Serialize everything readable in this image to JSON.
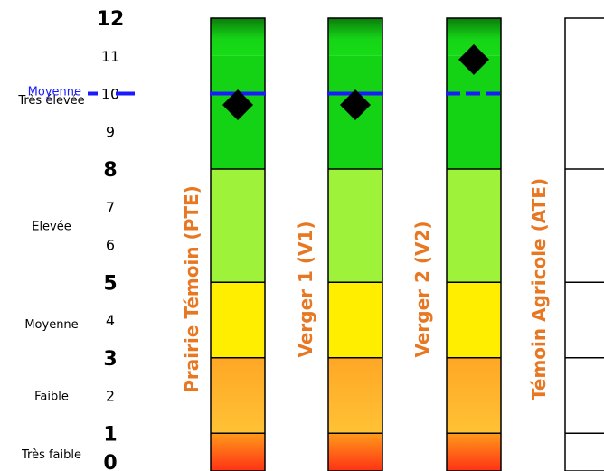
{
  "chart_data": {
    "type": "bar",
    "yaxis": {
      "ylim": [
        0,
        12
      ],
      "ticks": [
        {
          "value": 12,
          "label": "12",
          "major": true
        },
        {
          "value": 11,
          "label": "11",
          "major": false
        },
        {
          "value": 10,
          "label": "10",
          "major": false
        },
        {
          "value": 9,
          "label": "9",
          "major": false
        },
        {
          "value": 8,
          "label": "8",
          "major": true
        },
        {
          "value": 7,
          "label": "7",
          "major": false
        },
        {
          "value": 6,
          "label": "6",
          "major": false
        },
        {
          "value": 5,
          "label": "5",
          "major": true
        },
        {
          "value": 4,
          "label": "4",
          "major": false
        },
        {
          "value": 3,
          "label": "3",
          "major": true
        },
        {
          "value": 2,
          "label": "2",
          "major": false
        },
        {
          "value": 1,
          "label": "1",
          "major": true
        },
        {
          "value": 0,
          "label": "0",
          "major": true
        }
      ]
    },
    "classes": [
      {
        "label": "Très élevée",
        "from": 8,
        "to": 12,
        "value_at": 9.85
      },
      {
        "label": "Elevée",
        "from": 5,
        "to": 8,
        "value_at": 6.5
      },
      {
        "label": "Moyenne",
        "from": 3,
        "to": 5,
        "value_at": 3.9
      },
      {
        "label": "Faible",
        "from": 1,
        "to": 3,
        "value_at": 2.0
      },
      {
        "label": "Très faible",
        "from": 0,
        "to": 1,
        "value_at": 0.45
      }
    ],
    "average": {
      "label": "Moyenne",
      "value": 10.0,
      "color": "#1a1aff"
    },
    "columns": [
      {
        "label": "Prairie Témoin (PTE)",
        "value": 9.7,
        "show_average": true
      },
      {
        "label": "Verger 1 (V1)",
        "value": 9.7,
        "show_average": true
      },
      {
        "label": "Verger 2 (V2)",
        "value": 10.9,
        "show_average": true
      },
      {
        "label": "Témoin Agricole (ATE)",
        "value": null,
        "show_average": false
      }
    ],
    "colors": {
      "label": "#e87722",
      "marker": "#000000",
      "band_top": "#0e7f0e",
      "band_very_high": "#14d214",
      "band_high": "#9ef23a",
      "band_medium": "#ffee00",
      "band_low": "#ffb02e",
      "band_very_low": "#ff3b12"
    }
  }
}
